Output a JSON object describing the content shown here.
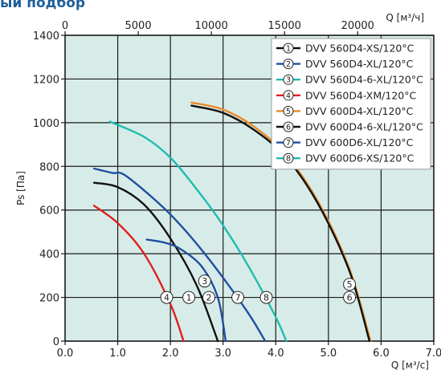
{
  "page": {
    "title": "ый подбор"
  },
  "chart_data": {
    "type": "line",
    "xlabel": "Q [м³/с]",
    "x2label": "Q [м³/ч]",
    "ylabel": "Ps [Па]",
    "xlim": [
      0,
      7
    ],
    "x2lim": [
      0,
      25200
    ],
    "ylim": [
      0,
      1400
    ],
    "x_ticks": [
      "0.0",
      "1.0",
      "2.0",
      "3.0",
      "4.0",
      "5.0",
      "6.0",
      "7.0"
    ],
    "x2_ticks": [
      "0",
      "5000",
      "10000",
      "15000",
      "20000"
    ],
    "y_ticks": [
      "0",
      "200",
      "400",
      "600",
      "800",
      "1000",
      "1200",
      "1400"
    ],
    "grid": true,
    "legend_position": "top-right",
    "background": "#d7ece8",
    "series": [
      {
        "name": "DVV 560D4-XS/120°C",
        "marker": "1",
        "color": "#111111",
        "points": [
          [
            0.55,
            725
          ],
          [
            1.0,
            705
          ],
          [
            1.5,
            625
          ],
          [
            2.0,
            470
          ],
          [
            2.5,
            255
          ],
          [
            2.9,
            0
          ]
        ],
        "marker_at": [
          2.35,
          200
        ]
      },
      {
        "name": "DVV 560D4-XL/120°C",
        "marker": "2",
        "color": "#1f4fa0",
        "points": [
          [
            1.55,
            465
          ],
          [
            1.9,
            450
          ],
          [
            2.2,
            420
          ],
          [
            2.6,
            340
          ],
          [
            2.9,
            200
          ],
          [
            3.05,
            0
          ]
        ],
        "marker_at": [
          2.73,
          200
        ]
      },
      {
        "name": "DVV 560D4-6-XL/120°C",
        "marker": "3",
        "color": "#1fbcb0",
        "points": [
          [
            0.85,
            1005
          ],
          [
            1.5,
            935
          ],
          [
            2.0,
            840
          ],
          [
            2.5,
            695
          ],
          [
            3.0,
            530
          ],
          [
            3.5,
            335
          ],
          [
            4.0,
            110
          ],
          [
            4.2,
            0
          ]
        ],
        "marker_at": [
          2.65,
          275
        ]
      },
      {
        "name": "DVV 560D4-XM/120°C",
        "marker": "4",
        "color": "#e02020",
        "points": [
          [
            0.55,
            620
          ],
          [
            1.0,
            540
          ],
          [
            1.5,
            400
          ],
          [
            2.0,
            170
          ],
          [
            2.25,
            0
          ]
        ],
        "marker_at": [
          1.93,
          200
        ]
      },
      {
        "name": "DVV 600D4-XL/120°C",
        "marker": "5",
        "color": "#e98a22",
        "points": [
          [
            2.4,
            1092
          ],
          [
            3.0,
            1060
          ],
          [
            3.6,
            980
          ],
          [
            4.2,
            850
          ],
          [
            4.8,
            640
          ],
          [
            5.4,
            330
          ],
          [
            5.8,
            0
          ]
        ],
        "marker_at": [
          5.4,
          260
        ]
      },
      {
        "name": "DVV 600D4-6-XL/120°C",
        "marker": "6",
        "color": "#111111",
        "points": [
          [
            2.4,
            1078
          ],
          [
            3.0,
            1045
          ],
          [
            3.6,
            965
          ],
          [
            4.2,
            840
          ],
          [
            4.8,
            630
          ],
          [
            5.4,
            320
          ],
          [
            5.78,
            0
          ]
        ],
        "marker_at": [
          5.4,
          200
        ]
      },
      {
        "name": "DVV 600D6-XL/120°C",
        "marker": "7",
        "color": "#1f4fa0",
        "points": [
          [
            0.55,
            790
          ],
          [
            0.9,
            770
          ],
          [
            1.1,
            765
          ],
          [
            1.5,
            690
          ],
          [
            2.0,
            580
          ],
          [
            2.5,
            445
          ],
          [
            3.0,
            290
          ],
          [
            3.5,
            120
          ],
          [
            3.8,
            0
          ]
        ],
        "marker_at": [
          3.28,
          200
        ]
      },
      {
        "name": "DVV 600D6-XS/120°C",
        "marker": "8",
        "color": "#1fbcb0",
        "points": [],
        "marker_at": [
          3.82,
          200
        ]
      }
    ]
  }
}
